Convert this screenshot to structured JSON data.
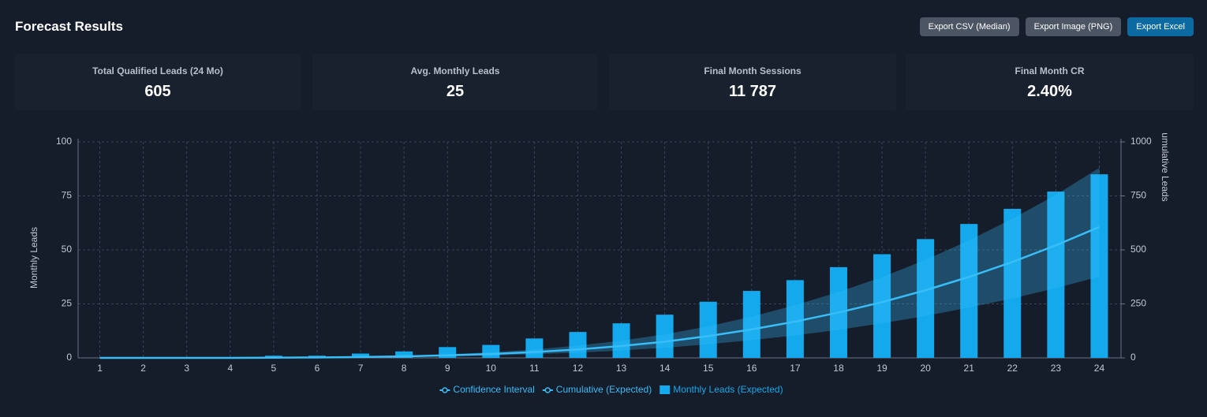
{
  "header": {
    "title": "Forecast Results",
    "buttons": [
      "Export CSV (Median)",
      "Export Image (PNG)",
      "Export Excel"
    ]
  },
  "kpis": [
    {
      "label": "Total Qualified Leads (24 Mo)",
      "value": "605"
    },
    {
      "label": "Avg. Monthly Leads",
      "value": "25"
    },
    {
      "label": "Final Month Sessions",
      "value": "11 787"
    },
    {
      "label": "Final Month CR",
      "value": "2.40%"
    }
  ],
  "chart_data": {
    "type": "combo",
    "y_label": "Monthly Leads",
    "y2_label": "umulative Leads",
    "categories": [
      "1",
      "2",
      "3",
      "4",
      "5",
      "6",
      "7",
      "8",
      "9",
      "10",
      "11",
      "12",
      "13",
      "14",
      "15",
      "16",
      "17",
      "18",
      "19",
      "20",
      "21",
      "22",
      "23",
      "24"
    ],
    "series": [
      {
        "name": "Confidence Interval",
        "type": "area",
        "axis": "y2",
        "color": "#38bdf8",
        "low": [
          0,
          0,
          0,
          0,
          1,
          1,
          2,
          4,
          7,
          11,
          17,
          24,
          34,
          47,
          63,
          82,
          104,
          130,
          160,
          194,
          233,
          275,
          323,
          376
        ],
        "high": [
          0,
          0,
          0,
          0,
          1,
          3,
          6,
          10,
          17,
          26,
          39,
          57,
          80,
          109,
          146,
          191,
          244,
          305,
          374,
          454,
          544,
          644,
          755,
          880
        ]
      },
      {
        "name": "Cumulative (Expected)",
        "type": "line",
        "axis": "y2",
        "color": "#38bdf8",
        "values": [
          0,
          0,
          0,
          0,
          1,
          2,
          4,
          7,
          12,
          18,
          27,
          39,
          55,
          75,
          101,
          132,
          168,
          210,
          258,
          313,
          375,
          444,
          521,
          606
        ]
      },
      {
        "name": "Monthly Leads (Expected)",
        "type": "bar",
        "color": "#14a9ec",
        "values": [
          0,
          0,
          0,
          0,
          1,
          1,
          2,
          3,
          5,
          6,
          9,
          12,
          16,
          20,
          26,
          31,
          36,
          42,
          48,
          55,
          62,
          69,
          77,
          85
        ]
      }
    ],
    "ylim": [
      0,
      100
    ],
    "yticks": [
      0,
      25,
      50,
      75,
      100
    ],
    "y2lim": [
      0,
      1000
    ],
    "y2ticks": [
      0,
      250,
      500,
      750,
      1000
    ],
    "grid": true
  }
}
